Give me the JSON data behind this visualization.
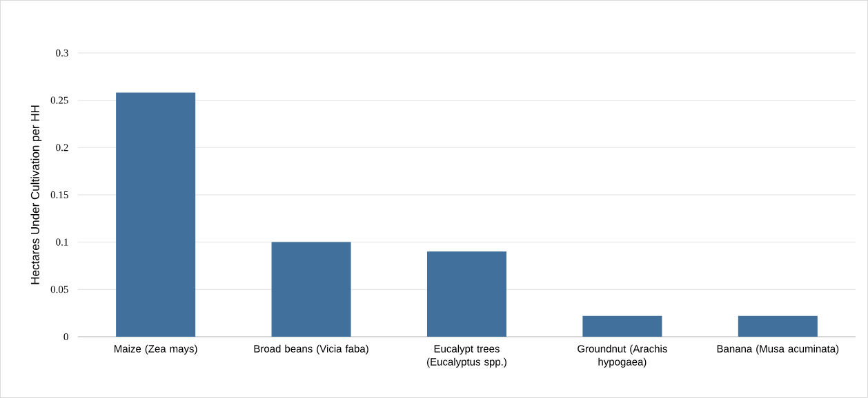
{
  "chart_data": {
    "type": "bar",
    "ylabel": "Hectares Under Cultivation per HH",
    "categories": [
      "Maize (Zea mays)",
      "Broad beans (Vicia faba)",
      "Eucalypt trees (Eucalyptus spp.)",
      "Groundnut (Arachis hypogaea)",
      "Banana (Musa acuminata)"
    ],
    "values": [
      0.258,
      0.1,
      0.09,
      0.022,
      0.022
    ],
    "color": "#41709c",
    "ylim": [
      0,
      0.3
    ],
    "yticks": [
      0,
      0.05,
      0.1,
      0.15,
      0.2,
      0.25,
      0.3
    ],
    "grid": "y"
  }
}
